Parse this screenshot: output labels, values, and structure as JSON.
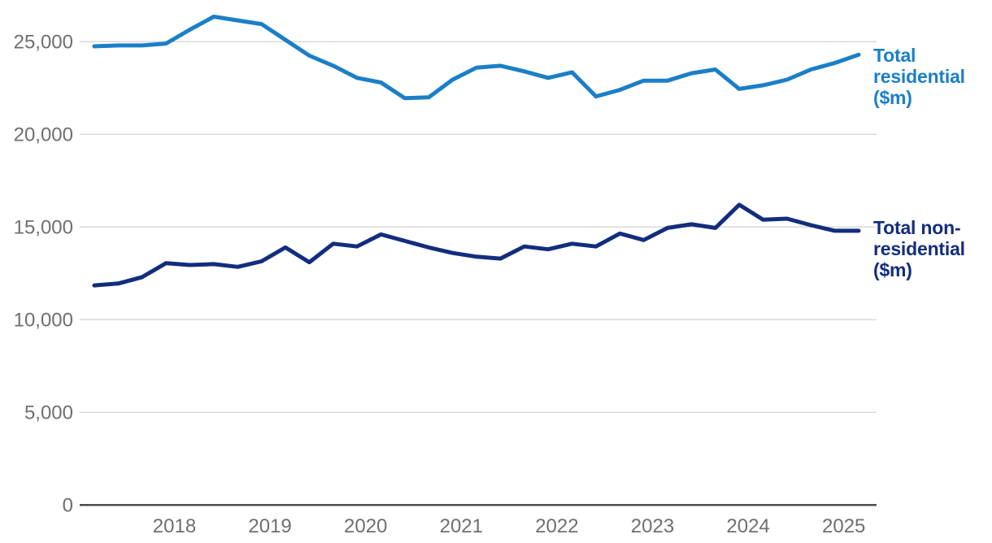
{
  "chart_data": {
    "type": "line",
    "title": "",
    "x_period": "quarterly, 2017 Q1 to 2025 Q1",
    "x_tick_labels": [
      "2018",
      "2019",
      "2020",
      "2021",
      "2022",
      "2023",
      "2024",
      "2025"
    ],
    "y_tick_labels": [
      "25,000",
      "20,000",
      "15,000",
      "10,000",
      "5,000",
      "0"
    ],
    "y_tick_values": [
      25000,
      20000,
      15000,
      10000,
      5000,
      0
    ],
    "ylim": [
      0,
      27000
    ],
    "grid": "horizontal",
    "legend_position": "right-of-line-ends",
    "series": [
      {
        "name": "Total residential ($m)",
        "label_lines": [
          "Total",
          "residential",
          "($m)"
        ],
        "color": "#1b7fc7",
        "values": [
          24750,
          24800,
          24800,
          24900,
          25650,
          26350,
          26150,
          25950,
          25100,
          24250,
          23700,
          23050,
          22800,
          21950,
          22000,
          22950,
          23600,
          23700,
          23400,
          23050,
          23350,
          22050,
          22400,
          22900,
          22900,
          23300,
          23500,
          22450,
          22650,
          22950,
          23500,
          23850,
          24300
        ]
      },
      {
        "name": "Total non-residential ($m)",
        "label_lines": [
          "Total non-",
          "residential",
          "($m)"
        ],
        "color": "#132d7d",
        "values": [
          11850,
          11950,
          12300,
          13050,
          12950,
          13000,
          12850,
          13150,
          13900,
          13100,
          14100,
          13950,
          14600,
          14250,
          13900,
          13600,
          13400,
          13300,
          13950,
          13800,
          14100,
          13950,
          14650,
          14300,
          14950,
          15150,
          14950,
          16200,
          15400,
          15450,
          15100,
          14800,
          14800
        ]
      }
    ]
  },
  "colors": {
    "background": "#ffffff",
    "grid": "#d9d9d9",
    "axis": "#4d4d4d",
    "tick_text": "#6f6f6f"
  }
}
